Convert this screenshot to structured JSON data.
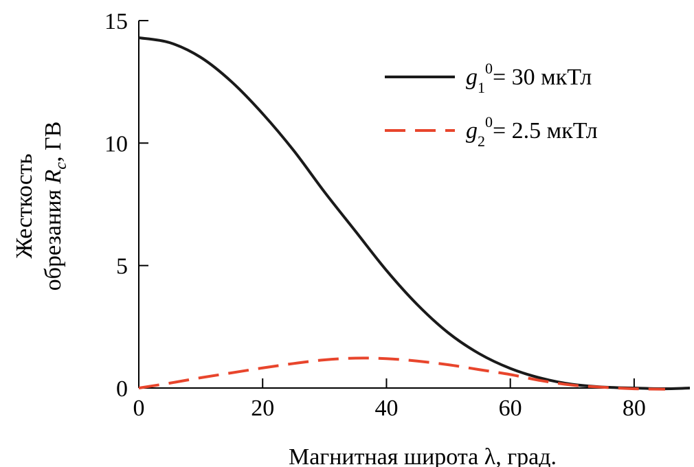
{
  "chart_data": {
    "type": "line",
    "xlabel": "Магнитная широта λ, град.",
    "ylabel": {
      "line1": "Жесткость",
      "line2_prefix": "обрезания ",
      "var": "R",
      "sub": "c",
      "suffix": ", ГВ"
    },
    "xlim": [
      0,
      89
    ],
    "ylim": [
      0,
      15
    ],
    "xticks": [
      0,
      20,
      40,
      60,
      80
    ],
    "yticks": [
      0,
      5,
      10,
      15
    ],
    "grid": false,
    "legend_position": "top-right",
    "series": [
      {
        "legend": {
          "var": "g",
          "sub": "1",
          "sup": "0",
          "rest": "= 30 мкТл"
        },
        "color": "#1a1a1a",
        "style": "solid",
        "x": [
          0,
          5,
          10,
          15,
          20,
          25,
          30,
          35,
          40,
          45,
          50,
          55,
          60,
          65,
          70,
          75,
          80,
          85,
          89
        ],
        "y": [
          14.3,
          14.1,
          13.5,
          12.5,
          11.2,
          9.7,
          8.0,
          6.4,
          4.8,
          3.4,
          2.25,
          1.4,
          0.8,
          0.4,
          0.15,
          0.04,
          0.0,
          -0.03,
          0.0
        ]
      },
      {
        "legend": {
          "var": "g",
          "sub": "2",
          "sup": "0",
          "rest": "= 2.5 мкТл"
        },
        "color": "#e8452c",
        "style": "dashed",
        "x": [
          0,
          5,
          10,
          15,
          20,
          25,
          30,
          35,
          40,
          45,
          50,
          55,
          60,
          65,
          70,
          75,
          80,
          85
        ],
        "y": [
          0.0,
          0.2,
          0.42,
          0.62,
          0.82,
          1.0,
          1.15,
          1.22,
          1.2,
          1.1,
          0.95,
          0.75,
          0.55,
          0.3,
          0.12,
          0.03,
          -0.03,
          -0.05
        ]
      }
    ]
  }
}
